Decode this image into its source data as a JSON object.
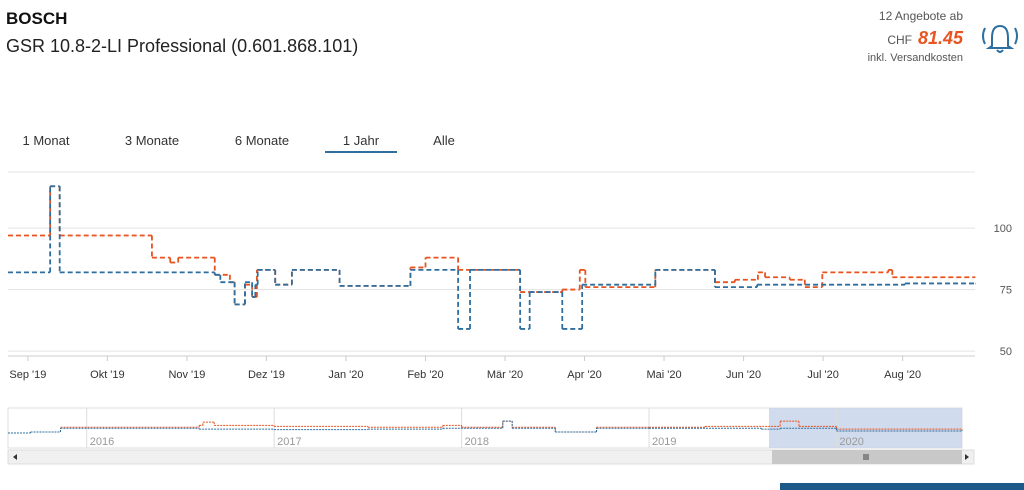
{
  "header": {
    "brand": "BOSCH",
    "product": "GSR 10.8-2-LI Professional (0.601.868.101)",
    "offers": "12 Angebote ab",
    "currency": "CHF",
    "price": "81.45",
    "shipping": "inkl. Versandkosten"
  },
  "ranges": {
    "items": [
      "1 Monat",
      "3 Monate",
      "6 Monate",
      "1 Jahr",
      "Alle"
    ],
    "selected": 3
  },
  "chart_data": [
    {
      "type": "line",
      "step": true,
      "xlim": [
        -0.25,
        11.91
      ],
      "ylim": [
        48,
        122.8
      ],
      "xticks": [
        {
          "value": 0,
          "label": "Sep '19"
        },
        {
          "value": 1,
          "label": "Okt '19"
        },
        {
          "value": 2,
          "label": "Nov '19"
        },
        {
          "value": 3,
          "label": "Dez '19"
        },
        {
          "value": 4,
          "label": "Jan '20"
        },
        {
          "value": 5,
          "label": "Feb '20"
        },
        {
          "value": 6,
          "label": "Mär '20"
        },
        {
          "value": 7,
          "label": "Apr '20"
        },
        {
          "value": 8,
          "label": "Mai '20"
        },
        {
          "value": 9,
          "label": "Jun '20"
        },
        {
          "value": 10,
          "label": "Jul '20"
        },
        {
          "value": 11,
          "label": "Aug '20"
        }
      ],
      "yticks": [
        50,
        75,
        100
      ],
      "grid": true,
      "series": [
        {
          "color": "#e8531f",
          "x": [
            -0.25,
            0.28,
            0.4,
            1.56,
            1.79,
            1.89,
            2.35,
            2.54,
            2.6,
            2.73,
            2.82,
            2.88,
            3.11,
            3.32,
            3.92,
            4.81,
            5.0,
            5.41,
            6.19,
            6.72,
            6.94,
            7.01,
            7.89,
            8.64,
            8.89,
            9.18,
            9.27,
            9.58,
            9.77,
            9.99,
            10.82,
            10.87,
            11.91
          ],
          "values": [
            97,
            117,
            97,
            88,
            86,
            88,
            81,
            78,
            69,
            77,
            72,
            83,
            77,
            83,
            76.5,
            84,
            88,
            83,
            74,
            75,
            83,
            76,
            83,
            78,
            79,
            82,
            80,
            79,
            76,
            82,
            83,
            80,
            80
          ]
        },
        {
          "color": "#2e6fa0",
          "x": [
            -0.25,
            0.28,
            0.4,
            2.35,
            2.42,
            2.6,
            2.73,
            2.82,
            2.86,
            2.89,
            3.11,
            3.32,
            3.92,
            4.81,
            5.41,
            5.56,
            6.19,
            6.31,
            6.72,
            6.97,
            7.89,
            8.64,
            9.17,
            11.03,
            11.91
          ],
          "values": [
            82,
            117,
            82,
            81,
            78,
            69,
            78,
            72,
            77,
            83,
            77,
            83,
            76.5,
            83,
            59,
            83,
            59,
            74,
            59,
            77,
            83,
            76,
            77,
            77.5,
            77.5
          ]
        }
      ]
    },
    {
      "type": "line",
      "step": true,
      "xlim": [
        2015.58,
        2020.67
      ],
      "ylim": [
        40,
        125
      ],
      "xticks": [
        2016,
        2017,
        2018,
        2019,
        2020
      ],
      "selection": [
        2019.64,
        2020.67
      ],
      "series": [
        {
          "color": "#e8531f",
          "x": [
            2015.86,
            2016.6,
            2016.62,
            2016.68,
            2017.0,
            2017.5,
            2017.9,
            2018.0,
            2018.22,
            2018.27,
            2018.5,
            2018.72,
            2019.0,
            2019.3,
            2019.7,
            2019.8,
            2020.0,
            2020.67
          ],
          "values": [
            84,
            88,
            95,
            88,
            86,
            84,
            88,
            84,
            97,
            84,
            74,
            84,
            84,
            86,
            97,
            86,
            80,
            80
          ]
        },
        {
          "color": "#2e6fa0",
          "x": [
            2015.58,
            2015.7,
            2015.86,
            2016.6,
            2017.0,
            2017.5,
            2017.9,
            2018.22,
            2018.27,
            2018.5,
            2018.72,
            2019.0,
            2019.6,
            2019.7,
            2020.0,
            2020.67
          ],
          "values": [
            72,
            74,
            82,
            80,
            79,
            80,
            82,
            97,
            82,
            74,
            82,
            82,
            80,
            82,
            76,
            78
          ]
        }
      ]
    }
  ]
}
